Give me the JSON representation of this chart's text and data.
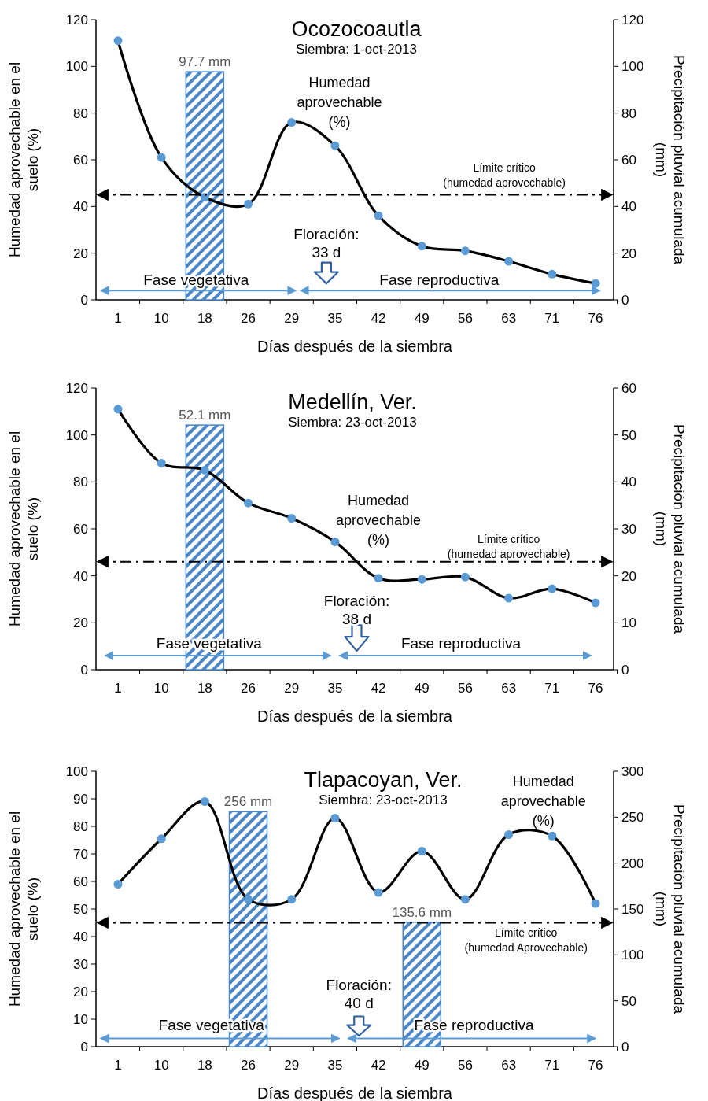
{
  "chart_data": [
    {
      "type": "line",
      "title": "Ocozocoautla",
      "subtitle": "Siembra: 1-oct-2013",
      "xlabel": "Días después de la siembra",
      "ylabel": "Humedad aprovechable en el suelo (%)",
      "y2label": "Precipitación pluvial acumulada (mm)",
      "categories": [
        "1",
        "10",
        "18",
        "26",
        "29",
        "35",
        "42",
        "49",
        "56",
        "63",
        "71",
        "76"
      ],
      "ylim": [
        0,
        120
      ],
      "yticks": [
        0,
        20,
        40,
        60,
        80,
        100,
        120
      ],
      "y2lim": [
        0,
        120
      ],
      "y2ticks": [
        0,
        20,
        40,
        60,
        80,
        100,
        120
      ],
      "marker": "circle",
      "series": [
        {
          "type": "bar",
          "axis": "y2",
          "color": "#4a86c8",
          "values": [
            null,
            null,
            97.7,
            null,
            null,
            null,
            null,
            null,
            null,
            null,
            null,
            null
          ],
          "value_labels": [
            null,
            null,
            "97.7 mm",
            null,
            null,
            null,
            null,
            null,
            null,
            null,
            null,
            null
          ]
        },
        {
          "name": "Humedad aprovechable (%)",
          "color": "#000000",
          "values": [
            111,
            61,
            44,
            41,
            76,
            66,
            36,
            23,
            21,
            16.5,
            11,
            7
          ]
        }
      ],
      "ref_lines": [
        {
          "axis": "y",
          "value": 45,
          "label": "Límite crítico (humedad aprovechable)",
          "line_style": "dashed",
          "color": "#000000"
        }
      ],
      "annotations": [
        "Floración: 33 d",
        "Fase vegetativa",
        "Fase reproductiva"
      ]
    },
    {
      "type": "line",
      "title": "Medellín, Ver.",
      "subtitle": "Siembra: 23-oct-2013",
      "xlabel": "Días después de la siembra",
      "ylabel": "Humedad aprovechable en el suelo (%)",
      "y2label": "Precipitación pluvial acumulada (mm)",
      "categories": [
        "1",
        "10",
        "18",
        "26",
        "29",
        "35",
        "42",
        "49",
        "56",
        "63",
        "71",
        "76"
      ],
      "ylim": [
        0,
        120
      ],
      "yticks": [
        0,
        20,
        40,
        60,
        80,
        100,
        120
      ],
      "y2lim": [
        0,
        60
      ],
      "y2ticks": [
        0,
        10,
        20,
        30,
        40,
        50,
        60
      ],
      "marker": "circle",
      "series": [
        {
          "type": "bar",
          "axis": "y2",
          "color": "#4a86c8",
          "values": [
            null,
            null,
            52.1,
            null,
            null,
            null,
            null,
            null,
            null,
            null,
            null,
            null
          ],
          "value_labels": [
            null,
            null,
            "52.1 mm",
            null,
            null,
            null,
            null,
            null,
            null,
            null,
            null,
            null
          ]
        },
        {
          "name": "Humedad aprovechable (%)",
          "color": "#000000",
          "values": [
            111,
            88,
            85,
            71,
            64.5,
            54.5,
            39,
            38.5,
            39.5,
            30.5,
            34.5,
            28.5
          ]
        }
      ],
      "ref_lines": [
        {
          "axis": "y",
          "value": 46,
          "label": "Límite crítico (humedad aprovechable)",
          "line_style": "dashed",
          "color": "#000000"
        }
      ],
      "annotations": [
        "Floración: 38 d",
        "Fase vegetativa",
        "Fase reproductiva"
      ]
    },
    {
      "type": "line",
      "title": "Tlapacoyan, Ver.",
      "subtitle": "Siembra: 23-oct-2013",
      "xlabel": "Días después de la siembra",
      "ylabel": "Humedad aprovechable en el suelo (%)",
      "y2label": "Precipitación pluvial acumulada (mm)",
      "categories": [
        "1",
        "10",
        "18",
        "26",
        "29",
        "35",
        "42",
        "49",
        "56",
        "63",
        "71",
        "76"
      ],
      "ylim": [
        0,
        100
      ],
      "yticks": [
        0,
        10,
        20,
        30,
        40,
        50,
        60,
        70,
        80,
        90,
        100
      ],
      "y2lim": [
        0,
        300
      ],
      "y2ticks": [
        0,
        50,
        100,
        150,
        200,
        250,
        300
      ],
      "marker": "circle",
      "series": [
        {
          "type": "bar",
          "axis": "y2",
          "color": "#4a86c8",
          "values": [
            null,
            null,
            null,
            256,
            null,
            null,
            null,
            135.6,
            null,
            null,
            null,
            null
          ],
          "value_labels": [
            null,
            null,
            null,
            "256 mm",
            null,
            null,
            null,
            "135.6 mm",
            null,
            null,
            null,
            null
          ]
        },
        {
          "name": "Humedad aprovechable (%)",
          "color": "#000000",
          "values": [
            59,
            75.5,
            89,
            53.5,
            53.5,
            83,
            56,
            71,
            53.5,
            77,
            76.5,
            52
          ]
        }
      ],
      "ref_lines": [
        {
          "axis": "y",
          "value": 45,
          "label": "Límite crítico (humedad Aprovechable)",
          "line_style": "dashed",
          "color": "#000000"
        }
      ],
      "annotations": [
        "Floración: 40 d",
        "Fase vegetativa",
        "Fase reproductiva"
      ]
    }
  ]
}
